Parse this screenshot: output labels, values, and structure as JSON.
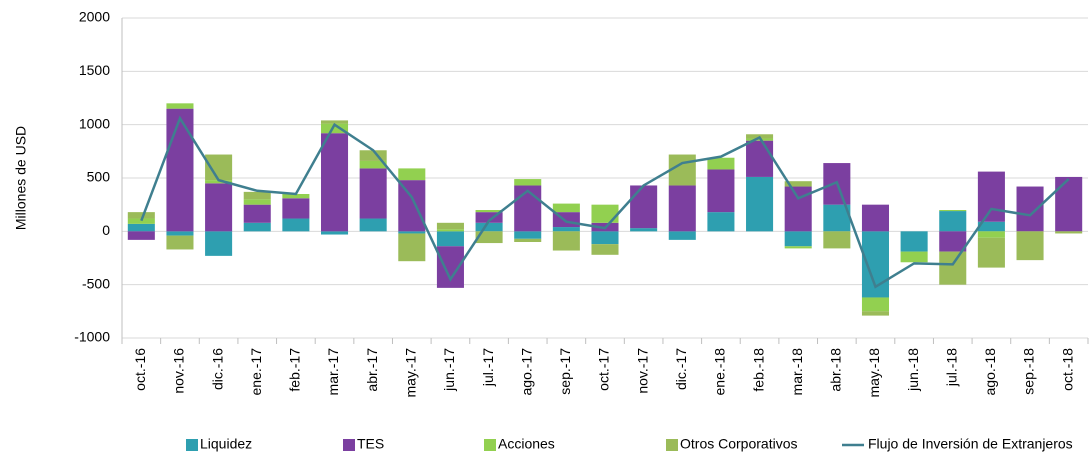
{
  "chart_data": {
    "type": "stacked_bar_line",
    "y_label": "Millones de USD",
    "categories": [
      "oct.-16",
      "nov.-16",
      "dic.-16",
      "ene.-17",
      "feb.-17",
      "mar.-17",
      "abr.-17",
      "may.-17",
      "jun.-17",
      "jul.-17",
      "ago.-17",
      "sep.-17",
      "oct.-17",
      "nov.-17",
      "dic.-17",
      "ene.-18",
      "feb.-18",
      "mar.-18",
      "abr.-18",
      "may.-18",
      "jun.-18",
      "jul.-18",
      "ago.-18",
      "sep.-18",
      "oct.-18"
    ],
    "series": [
      {
        "name": "Liquidez",
        "color": "#2e9fb0",
        "values": [
          70,
          -40,
          -230,
          80,
          120,
          -30,
          120,
          -20,
          -140,
          80,
          -70,
          40,
          -120,
          30,
          -80,
          180,
          510,
          -140,
          250,
          -620,
          -190,
          190,
          90,
          0,
          0
        ]
      },
      {
        "name": "TES",
        "color": "#7b3fa0",
        "values": [
          -80,
          1150,
          450,
          170,
          190,
          920,
          470,
          480,
          -390,
          100,
          430,
          140,
          80,
          400,
          430,
          400,
          340,
          420,
          390,
          250,
          0,
          -190,
          470,
          420,
          510
        ]
      },
      {
        "name": "Acciones",
        "color": "#92d050",
        "values": [
          50,
          50,
          30,
          50,
          40,
          90,
          70,
          110,
          20,
          20,
          60,
          80,
          170,
          0,
          0,
          110,
          20,
          -20,
          0,
          -130,
          -100,
          10,
          -60,
          0,
          0
        ]
      },
      {
        "name": "Otros Corporativos",
        "color": "#9bbb59",
        "values": [
          60,
          -130,
          240,
          70,
          0,
          30,
          100,
          -260,
          60,
          -110,
          -30,
          -180,
          -100,
          0,
          290,
          0,
          40,
          50,
          -160,
          -40,
          0,
          -310,
          -280,
          -270,
          -20
        ]
      },
      {
        "name": "Flujo de Inversión de Extranjeros",
        "type": "line",
        "color": "#3f7f8f",
        "values": [
          100,
          1060,
          480,
          380,
          350,
          1000,
          760,
          320,
          -450,
          100,
          380,
          90,
          30,
          430,
          640,
          700,
          880,
          310,
          460,
          -520,
          -300,
          -310,
          210,
          150,
          490
        ]
      }
    ],
    "ylim": [
      -1000,
      2000
    ],
    "yticks": [
      -1000,
      -500,
      0,
      500,
      1000,
      1500,
      2000
    ],
    "grid": true,
    "legend": "bottom"
  }
}
